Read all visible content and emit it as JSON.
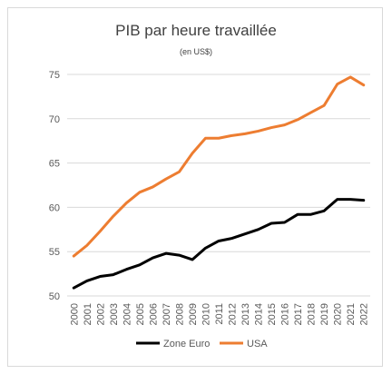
{
  "chart_data": {
    "type": "line",
    "title": "PIB par heure travaillée",
    "subtitle": "(en US$)",
    "xlabel": "",
    "ylabel": "",
    "ylim": [
      50,
      75
    ],
    "yticks": [
      50,
      55,
      60,
      65,
      70,
      75
    ],
    "categories": [
      "2000",
      "2001",
      "2002",
      "2003",
      "2004",
      "2005",
      "2006",
      "2007",
      "2008",
      "2009",
      "2010",
      "2011",
      "2012",
      "2013",
      "2014",
      "2015",
      "2016",
      "2017",
      "2018",
      "2019",
      "2020",
      "2021",
      "2022"
    ],
    "grid": true,
    "legend_position": "bottom",
    "series": [
      {
        "name": "Zone Euro",
        "color": "#000000",
        "values": [
          50.9,
          51.7,
          52.2,
          52.4,
          53.0,
          53.5,
          54.3,
          54.8,
          54.6,
          54.1,
          55.4,
          56.2,
          56.5,
          57.0,
          57.5,
          58.2,
          58.3,
          59.2,
          59.2,
          59.6,
          60.9,
          60.9,
          60.8
        ]
      },
      {
        "name": "USA",
        "color": "#ed7d31",
        "values": [
          54.5,
          55.7,
          57.3,
          59.0,
          60.5,
          61.7,
          62.3,
          63.2,
          64.0,
          66.1,
          67.8,
          67.8,
          68.1,
          68.3,
          68.6,
          69.0,
          69.3,
          69.9,
          70.7,
          71.5,
          73.9,
          74.7,
          73.8
        ]
      }
    ]
  }
}
